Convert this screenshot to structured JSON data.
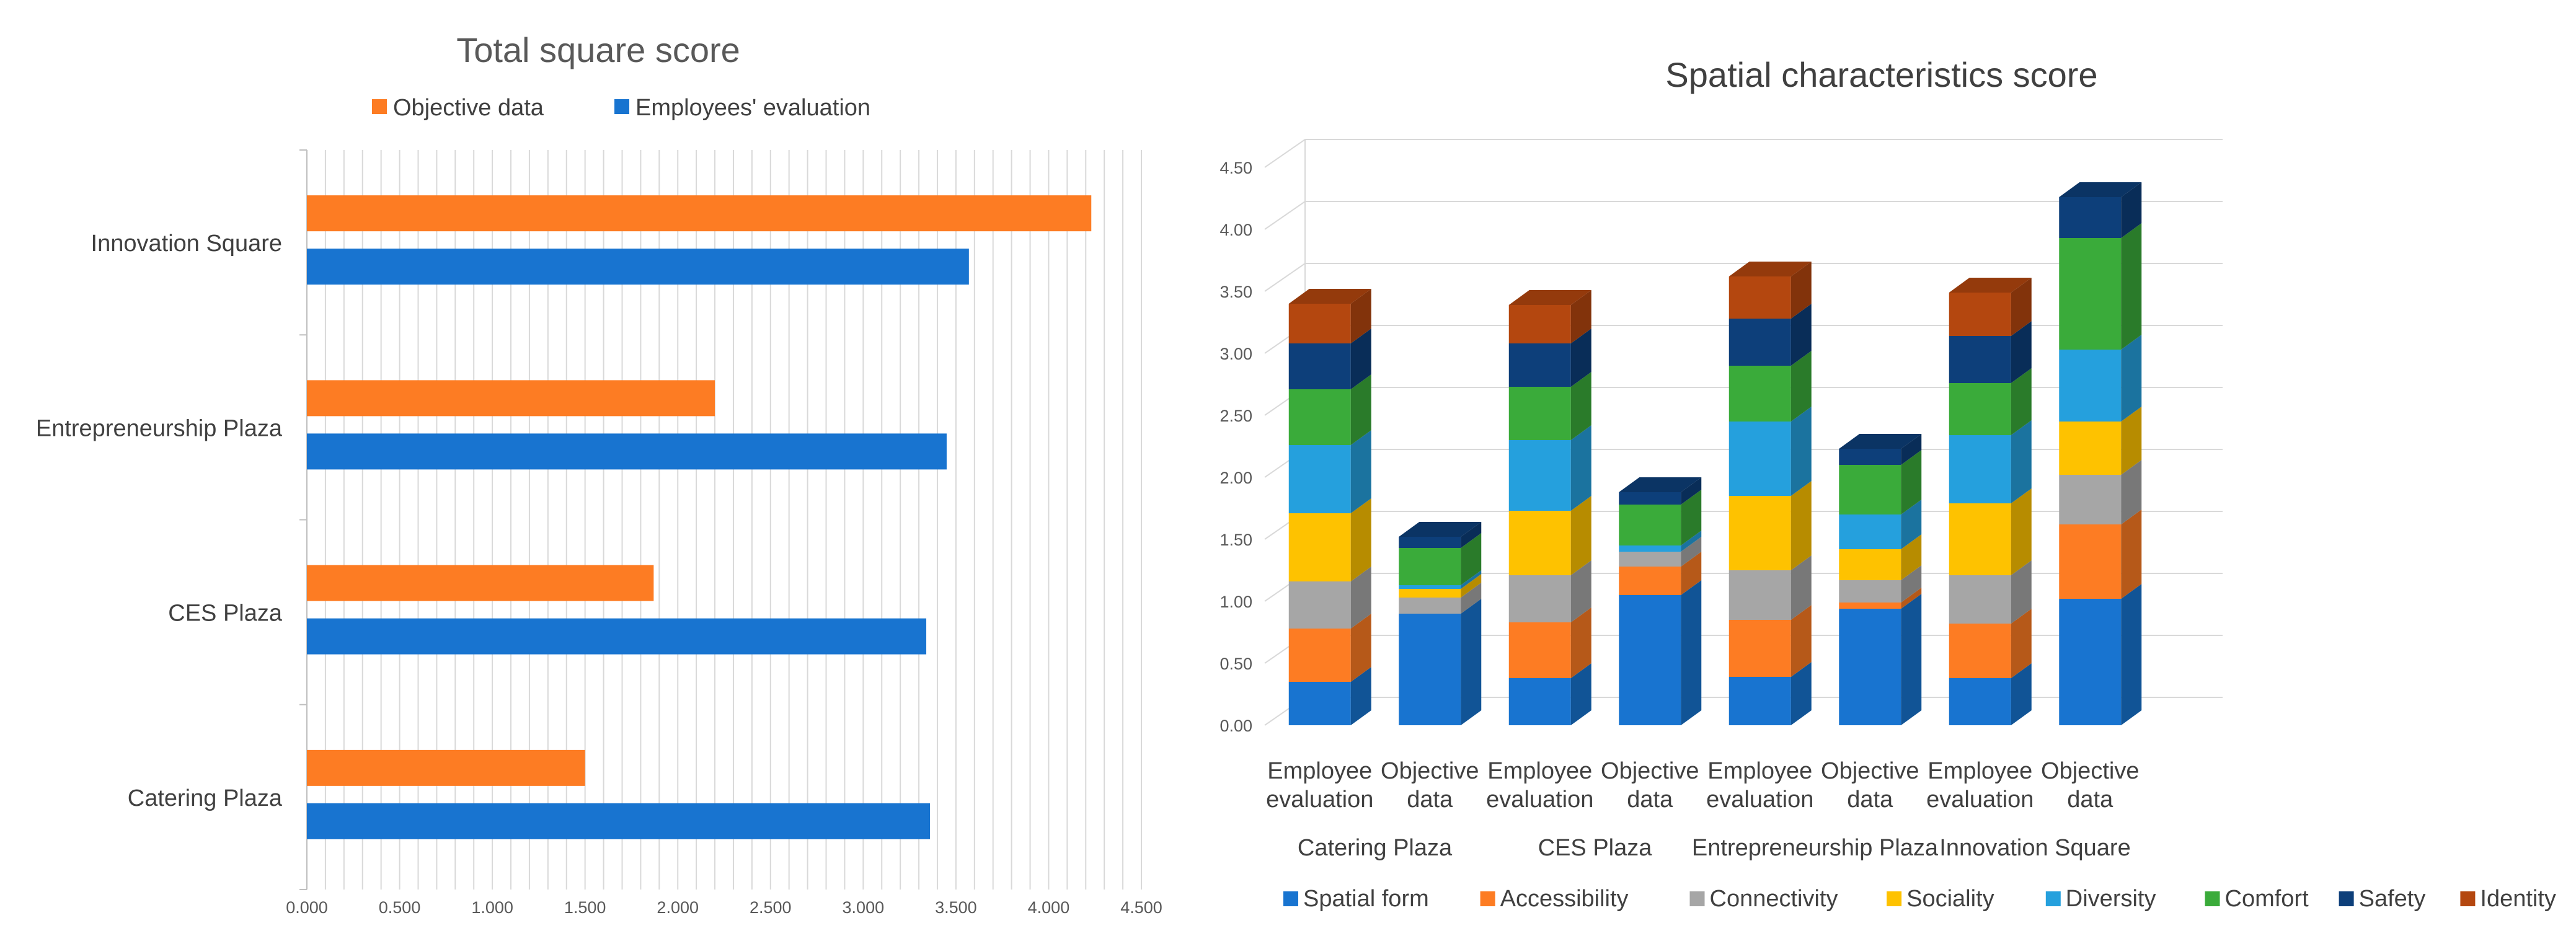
{
  "colors": {
    "objective": "#fd7c23",
    "employees": "#1874d0",
    "grid": "#d9d9d9",
    "text": "#404040",
    "tick": "#595959"
  },
  "chart_data": [
    {
      "type": "bar",
      "orientation": "horizontal",
      "title": "Total square score",
      "categories": [
        "Innovation Square",
        "Entrepreneurship Plaza",
        "CES Plaza",
        "Catering Plaza"
      ],
      "series": [
        {
          "name": "Objective data",
          "color": "#fd7c23",
          "values": [
            4.23,
            2.2,
            1.87,
            1.5
          ]
        },
        {
          "name": "Employees' evaluation",
          "color": "#1874d0",
          "values": [
            3.57,
            3.45,
            3.34,
            3.36
          ]
        }
      ],
      "xlim": [
        0,
        4.5
      ],
      "ticks": [
        "0.000",
        "0.500",
        "1.000",
        "1.500",
        "2.000",
        "2.500",
        "3.000",
        "3.500",
        "4.000",
        "4.500"
      ],
      "legend": "top"
    },
    {
      "type": "bar",
      "stacked": true,
      "title": "Spatial characteristics score",
      "groups": [
        "Catering Plaza",
        "CES Plaza",
        "Entrepreneurship Plaza",
        "Innovation Square"
      ],
      "categories": [
        [
          "Employee",
          "evaluation"
        ],
        [
          "Objective",
          "data"
        ],
        [
          "Employee",
          "evaluation"
        ],
        [
          "Objective",
          "data"
        ],
        [
          "Employee",
          "evaluation"
        ],
        [
          "Objective",
          "data"
        ],
        [
          "Employee",
          "evaluation"
        ],
        [
          "Objective",
          "data"
        ]
      ],
      "series": [
        {
          "name": "Spatial form",
          "color": "#1874d0",
          "values": [
            0.35,
            0.9,
            0.38,
            1.05,
            0.39,
            0.94,
            0.38,
            1.02
          ]
        },
        {
          "name": "Accessibility",
          "color": "#fd7c23",
          "values": [
            0.43,
            0.0,
            0.45,
            0.23,
            0.46,
            0.05,
            0.44,
            0.6
          ]
        },
        {
          "name": "Connectivity",
          "color": "#a6a6a6",
          "values": [
            0.38,
            0.13,
            0.38,
            0.12,
            0.4,
            0.18,
            0.39,
            0.4
          ]
        },
        {
          "name": "Sociality",
          "color": "#fec200",
          "values": [
            0.55,
            0.07,
            0.52,
            0.0,
            0.6,
            0.25,
            0.58,
            0.43
          ]
        },
        {
          "name": "Diversity",
          "color": "#25a0dd",
          "values": [
            0.55,
            0.03,
            0.57,
            0.05,
            0.6,
            0.28,
            0.55,
            0.58
          ]
        },
        {
          "name": "Comfort",
          "color": "#3aab3a",
          "values": [
            0.45,
            0.3,
            0.43,
            0.33,
            0.45,
            0.4,
            0.42,
            0.9
          ]
        },
        {
          "name": "Safety",
          "color": "#0d3f7a",
          "values": [
            0.37,
            0.09,
            0.35,
            0.1,
            0.38,
            0.13,
            0.38,
            0.33
          ]
        },
        {
          "name": "Identity",
          "color": "#b4470f",
          "values": [
            0.32,
            0.0,
            0.31,
            0.0,
            0.34,
            0.0,
            0.35,
            0.0
          ]
        }
      ],
      "ylim": [
        0,
        4.5
      ],
      "ticks": [
        "0.00",
        "0.50",
        "1.00",
        "1.50",
        "2.00",
        "2.50",
        "3.00",
        "3.50",
        "4.00",
        "4.50"
      ],
      "legend": "bottom"
    }
  ]
}
